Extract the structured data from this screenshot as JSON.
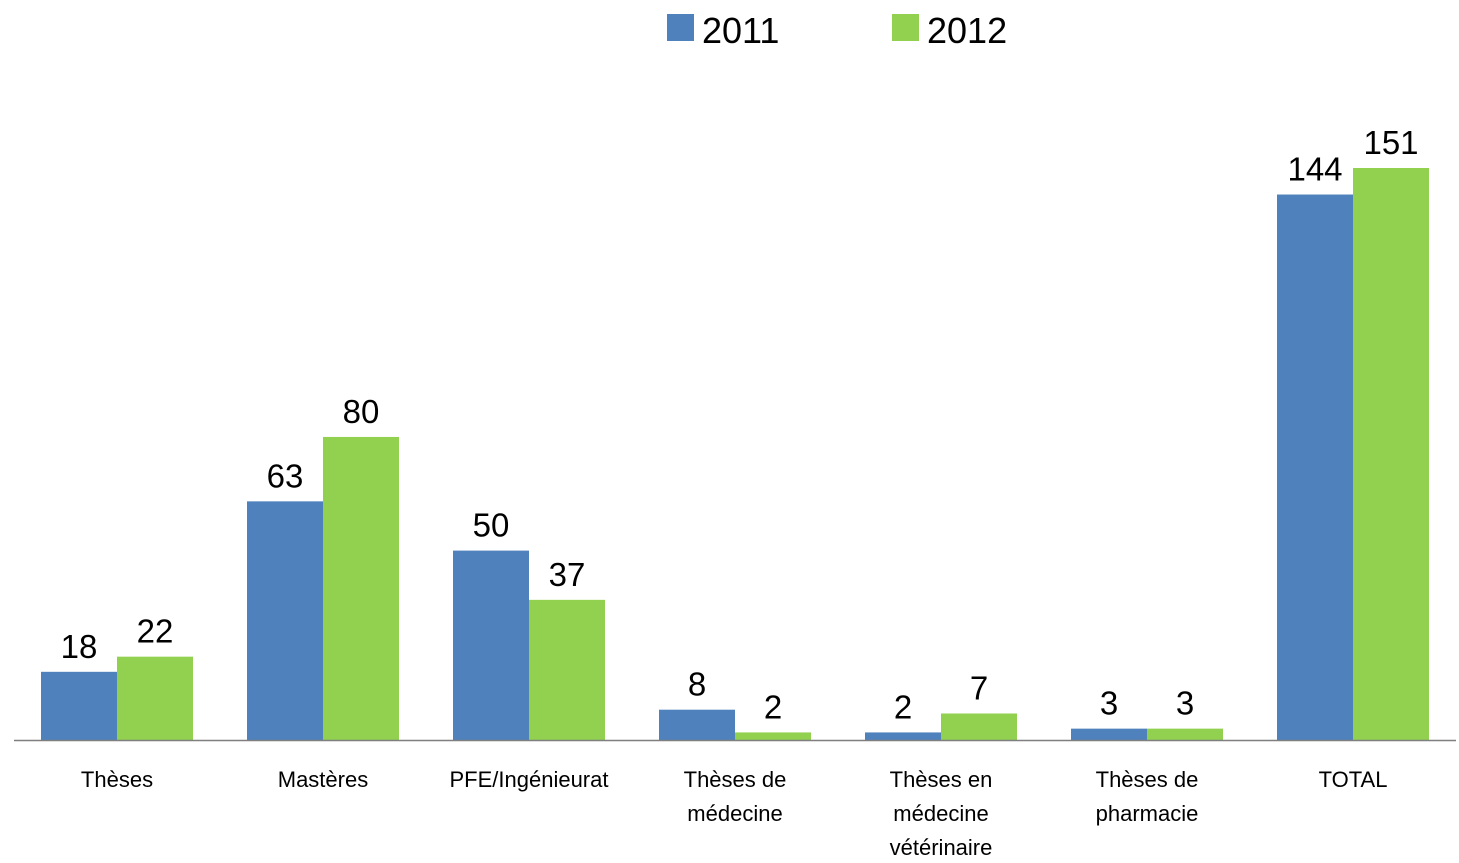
{
  "chart_data": {
    "type": "bar",
    "title": "",
    "xlabel": "",
    "ylabel": "",
    "ylim": [
      0,
      151
    ],
    "grid": false,
    "legend_position": "top-center",
    "categories": [
      "Thèses",
      "Mastères",
      "PFE/Ingénieurat",
      "Thèses de médecine",
      "Thèses en médecine vétérinaire",
      "Thèses de pharmacie",
      "TOTAL"
    ],
    "series": [
      {
        "name": "2011",
        "color": "#4F81BD",
        "values": [
          18,
          63,
          50,
          8,
          2,
          3,
          144
        ]
      },
      {
        "name": "2012",
        "color": "#92D050",
        "values": [
          22,
          80,
          37,
          2,
          7,
          3,
          151
        ]
      }
    ]
  }
}
